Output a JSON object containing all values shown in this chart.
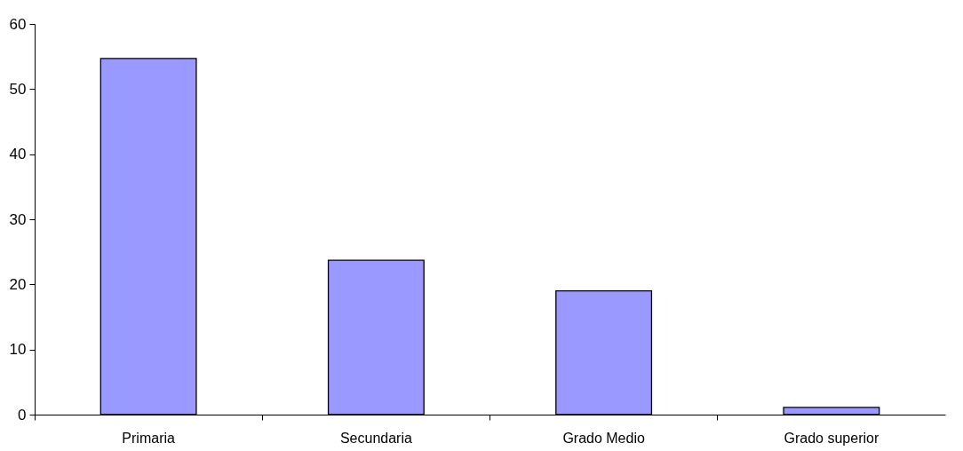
{
  "chart_data": {
    "type": "bar",
    "categories": [
      "Primaria",
      "Secundaria",
      "Grado Medio",
      "Grado superior"
    ],
    "values": [
      54.7,
      23.7,
      19.0,
      1.1
    ],
    "color": "#9999ff",
    "ylim": [
      0,
      60
    ],
    "yticks": [
      0,
      10,
      20,
      30,
      40,
      50,
      60
    ],
    "grid": false
  }
}
